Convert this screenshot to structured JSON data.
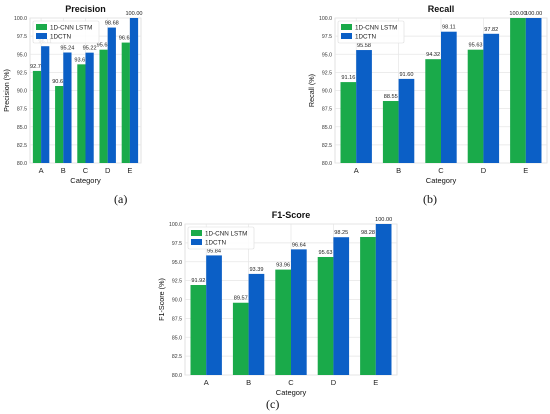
{
  "chart_data": [
    {
      "type": "bar",
      "panel_label": "(a)",
      "title": "Precision",
      "xlabel": "Category",
      "ylabel": "Precision (%)",
      "categories": [
        "A",
        "B",
        "C",
        "D",
        "E"
      ],
      "ylim": [
        80.0,
        100.0
      ],
      "yticks": [
        "80.0",
        "82.5",
        "85.0",
        "87.5",
        "90.0",
        "92.5",
        "95.0",
        "97.5",
        "100.0"
      ],
      "grid": true,
      "legend": "top-left",
      "series": [
        {
          "name": "1D-CNN LSTM",
          "color": "#1aaa4a",
          "values": [
            92.7,
            90.62,
            93.61,
            95.63,
            96.61
          ],
          "labels": [
            "92.70",
            "90.62",
            "93.61",
            "95.63",
            "96.61"
          ]
        },
        {
          "name": "1DCTN",
          "color": "#0b5fc6",
          "values": [
            96.11,
            95.24,
            95.22,
            98.68,
            100.0
          ],
          "labels": [
            "96.11",
            "95.24",
            "95.22",
            "98.68",
            "100.00"
          ]
        }
      ]
    },
    {
      "type": "bar",
      "panel_label": "(b)",
      "title": "Recall",
      "xlabel": "Category",
      "ylabel": "Recall (%)",
      "categories": [
        "A",
        "B",
        "C",
        "D",
        "E"
      ],
      "ylim": [
        80.0,
        100.0
      ],
      "yticks": [
        "80.0",
        "82.5",
        "85.0",
        "87.5",
        "90.0",
        "92.5",
        "95.0",
        "97.5",
        "100.0"
      ],
      "grid": true,
      "legend": "top-left",
      "series": [
        {
          "name": "1D-CNN LSTM",
          "color": "#1aaa4a",
          "values": [
            91.16,
            88.55,
            94.32,
            95.63,
            100.0
          ],
          "labels": [
            "91.16",
            "88.55",
            "94.32",
            "95.63",
            "100.00"
          ]
        },
        {
          "name": "1DCTN",
          "color": "#0b5fc6",
          "values": [
            95.58,
            91.6,
            98.11,
            97.82,
            100.0
          ],
          "labels": [
            "95.58",
            "91.60",
            "98.11",
            "97.82",
            "100.00"
          ]
        }
      ]
    },
    {
      "type": "bar",
      "panel_label": "(c)",
      "title": "F1-Score",
      "xlabel": "Category",
      "ylabel": "F1-Score (%)",
      "categories": [
        "A",
        "B",
        "C",
        "D",
        "E"
      ],
      "ylim": [
        80.0,
        100.0
      ],
      "yticks": [
        "80.0",
        "82.5",
        "85.0",
        "87.5",
        "90.0",
        "92.5",
        "95.0",
        "97.5",
        "100.0"
      ],
      "grid": true,
      "legend": "top-left",
      "series": [
        {
          "name": "1D-CNN LSTM",
          "color": "#1aaa4a",
          "values": [
            91.92,
            89.57,
            93.96,
            95.63,
            98.28
          ],
          "labels": [
            "91.92",
            "89.57",
            "93.96",
            "95.63",
            "98.28"
          ]
        },
        {
          "name": "1DCTN",
          "color": "#0b5fc6",
          "values": [
            95.84,
            93.39,
            96.64,
            98.25,
            100.0
          ],
          "labels": [
            "95.84",
            "93.39",
            "96.64",
            "98.25",
            "100.00"
          ]
        }
      ]
    }
  ]
}
